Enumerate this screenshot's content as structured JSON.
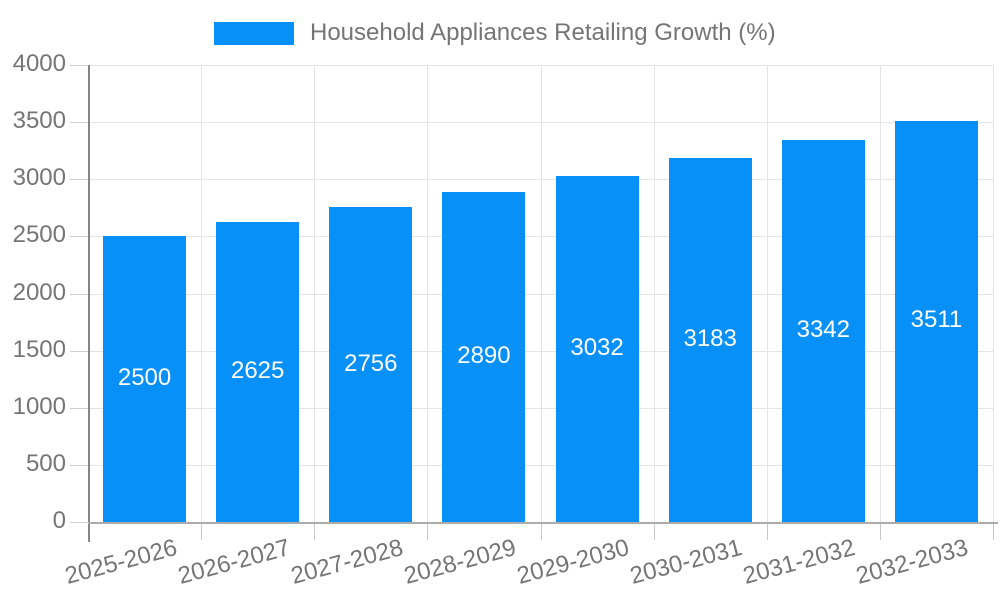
{
  "legend": {
    "label": "Household Appliances Retailing Growth (%)",
    "swatch_color": "#0690f8"
  },
  "chart_data": {
    "type": "bar",
    "title": "Household Appliances Retailing Growth (%)",
    "categories": [
      "2025-2026",
      "2026-2027",
      "2027-2028",
      "2028-2029",
      "2029-2030",
      "2030-2031",
      "2031-2032",
      "2032-2033"
    ],
    "series": [
      {
        "name": "Household Appliances Retailing Growth (%)",
        "color": "#0690f8",
        "values": [
          2500,
          2625,
          2756,
          2890,
          3032,
          3183,
          3342,
          3511
        ]
      }
    ],
    "xlabel": "",
    "ylabel": "",
    "ylim": [
      0,
      4000
    ],
    "yticks": [
      0,
      500,
      1000,
      1500,
      2000,
      2500,
      3000,
      3500,
      4000
    ],
    "grid": true,
    "legend_position": "top",
    "value_labels_shown": true,
    "value_label_color": "#ffffff",
    "axis_text_color": "#757575",
    "grid_color": "#e4e4e4"
  }
}
